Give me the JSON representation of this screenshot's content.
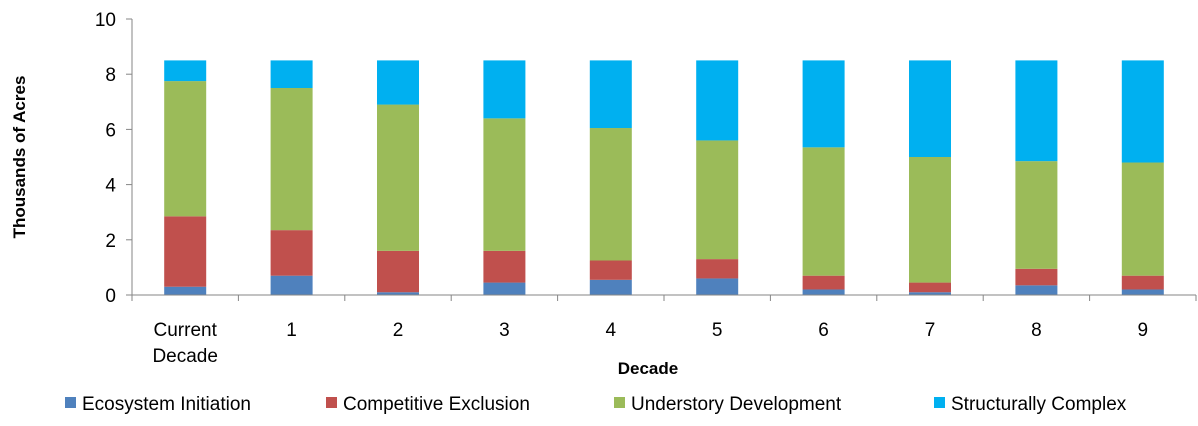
{
  "chart_data": {
    "type": "bar",
    "stacked": true,
    "xlabel": "Decade",
    "ylabel": "Thousands of Acres",
    "ylim": [
      0,
      10
    ],
    "yticks": [
      0,
      2,
      4,
      6,
      8,
      10
    ],
    "grid": false,
    "legend_position": "bottom",
    "categories": [
      [
        "Current",
        "Decade"
      ],
      [
        "1"
      ],
      [
        "2"
      ],
      [
        "3"
      ],
      [
        "4"
      ],
      [
        "5"
      ],
      [
        "6"
      ],
      [
        "7"
      ],
      [
        "8"
      ],
      [
        "9"
      ]
    ],
    "series": [
      {
        "name": "Ecosystem Initiation",
        "color": "#4F81BD",
        "values": [
          0.3,
          0.7,
          0.1,
          0.45,
          0.55,
          0.6,
          0.2,
          0.1,
          0.35,
          0.2
        ]
      },
      {
        "name": "Competitive Exclusion",
        "color": "#C0504D",
        "values": [
          2.55,
          1.65,
          1.5,
          1.15,
          0.7,
          0.7,
          0.5,
          0.35,
          0.6,
          0.5
        ]
      },
      {
        "name": "Understory Development",
        "color": "#9BBB59",
        "values": [
          4.9,
          5.15,
          5.3,
          4.8,
          4.8,
          4.3,
          4.65,
          4.55,
          3.9,
          4.1
        ]
      },
      {
        "name": "Structurally Complex",
        "color": "#00B0F0",
        "values": [
          0.75,
          1.0,
          1.6,
          2.1,
          2.45,
          2.9,
          3.15,
          3.5,
          3.65,
          3.7
        ]
      }
    ]
  }
}
